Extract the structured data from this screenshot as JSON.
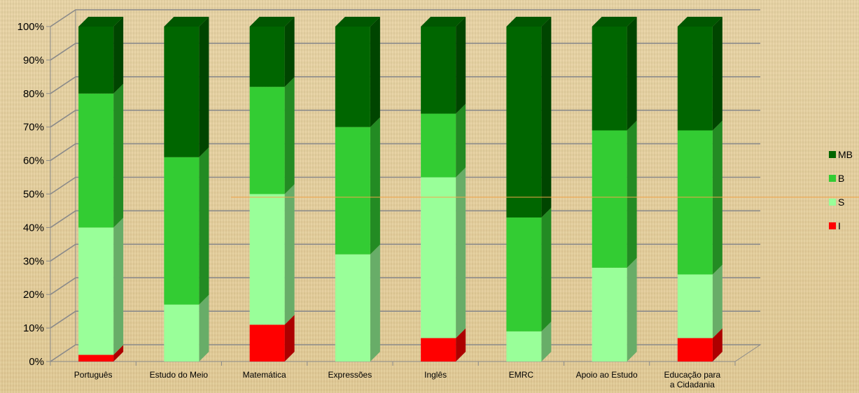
{
  "chart_data": {
    "type": "bar",
    "stacked": "percent",
    "three_d": true,
    "title": "",
    "xlabel": "",
    "ylabel": "",
    "ylim": [
      0,
      100
    ],
    "yticks": [
      "0%",
      "10%",
      "20%",
      "30%",
      "40%",
      "50%",
      "60%",
      "70%",
      "80%",
      "90%",
      "100%"
    ],
    "grid": true,
    "legend_position": "right",
    "categories": [
      [
        "Português"
      ],
      [
        "Estudo do Meio"
      ],
      [
        "Matemática"
      ],
      [
        "Expressões"
      ],
      [
        "Inglês"
      ],
      [
        "EMRC"
      ],
      [
        "Apoio ao Estudo"
      ],
      [
        "Educação para",
        "a Cidadania"
      ]
    ],
    "series": [
      {
        "name": "I",
        "color": "#ff0000",
        "values": [
          2,
          0,
          11,
          0,
          7,
          0,
          0,
          7
        ]
      },
      {
        "name": "S",
        "color": "#99ff99",
        "values": [
          38,
          17,
          39,
          32,
          48,
          9,
          28,
          19
        ]
      },
      {
        "name": "B",
        "color": "#33cc33",
        "values": [
          40,
          44,
          32,
          38,
          19,
          34,
          41,
          43
        ]
      },
      {
        "name": "MB",
        "color": "#006600",
        "values": [
          20,
          39,
          18,
          30,
          26,
          57,
          31,
          31
        ]
      }
    ],
    "legend_order": [
      "MB",
      "B",
      "S",
      "I"
    ]
  }
}
